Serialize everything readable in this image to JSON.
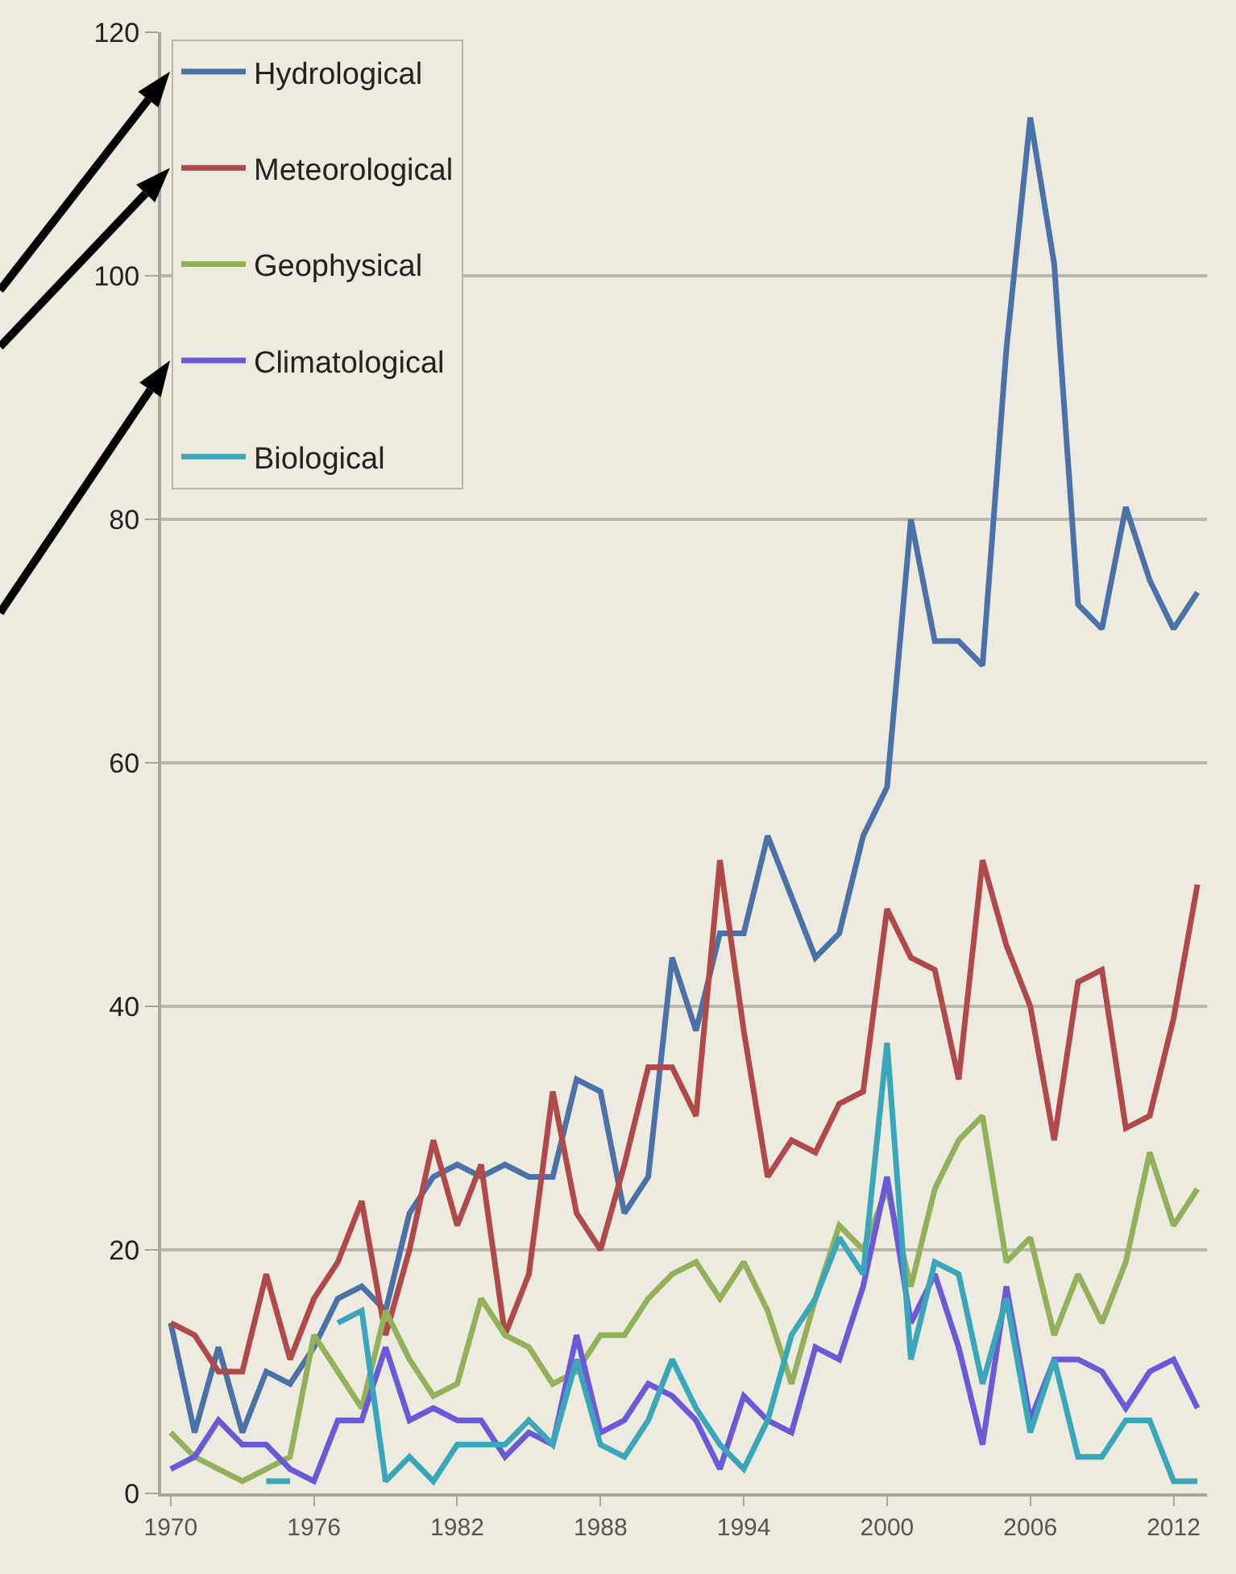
{
  "chart_data": {
    "type": "line",
    "x": [
      1970,
      1971,
      1972,
      1973,
      1974,
      1975,
      1976,
      1977,
      1978,
      1979,
      1980,
      1981,
      1982,
      1983,
      1984,
      1985,
      1986,
      1987,
      1988,
      1989,
      1990,
      1991,
      1992,
      1993,
      1994,
      1995,
      1996,
      1997,
      1998,
      1999,
      2000,
      2001,
      2002,
      2003,
      2004,
      2005,
      2006,
      2007,
      2008,
      2009,
      2010,
      2011,
      2012,
      2013
    ],
    "series": [
      {
        "name": "Hydrological",
        "color": "#4a72a8",
        "values": [
          14,
          5,
          12,
          5,
          10,
          9,
          12,
          16,
          17,
          15,
          23,
          26,
          27,
          26,
          27,
          26,
          26,
          34,
          33,
          23,
          26,
          44,
          38,
          46,
          46,
          54,
          49,
          44,
          46,
          54,
          58,
          80,
          70,
          70,
          68,
          94,
          113,
          101,
          73,
          71,
          81,
          75,
          71,
          74
        ]
      },
      {
        "name": "Meteorological",
        "color": "#b04a4a",
        "values": [
          14,
          13,
          10,
          10,
          18,
          11,
          16,
          19,
          24,
          13,
          20,
          29,
          22,
          27,
          13,
          18,
          33,
          23,
          20,
          27,
          35,
          35,
          31,
          52,
          38,
          26,
          29,
          28,
          32,
          33,
          48,
          44,
          43,
          34,
          52,
          45,
          40,
          29,
          42,
          43,
          30,
          31,
          39,
          50
        ]
      },
      {
        "name": "Geophysical",
        "color": "#93b15a",
        "values": [
          5,
          3,
          2,
          1,
          2,
          3,
          13,
          10,
          7,
          15,
          11,
          8,
          9,
          16,
          13,
          12,
          9,
          10,
          13,
          13,
          16,
          18,
          19,
          16,
          19,
          15,
          9,
          16,
          22,
          20,
          25,
          17,
          25,
          29,
          31,
          19,
          21,
          13,
          18,
          14,
          19,
          28,
          22,
          25
        ]
      },
      {
        "name": "Climatological",
        "color": "#6a5ad8",
        "values": [
          2,
          3,
          6,
          4,
          4,
          2,
          1,
          6,
          6,
          12,
          6,
          7,
          6,
          6,
          3,
          5,
          4,
          13,
          5,
          6,
          9,
          8,
          6,
          2,
          8,
          6,
          5,
          12,
          11,
          17,
          26,
          14,
          18,
          12,
          4,
          17,
          6,
          11,
          11,
          10,
          7,
          10,
          11,
          7
        ]
      },
      {
        "name": "Biological",
        "color": "#3aa6b9",
        "values": [
          null,
          null,
          null,
          null,
          1,
          1,
          null,
          14,
          15,
          1,
          3,
          1,
          4,
          4,
          4,
          6,
          4,
          11,
          4,
          3,
          6,
          11,
          7,
          4,
          2,
          6,
          13,
          16,
          21,
          18,
          37,
          11,
          19,
          18,
          9,
          16,
          5,
          11,
          3,
          3,
          6,
          6,
          1,
          1
        ]
      }
    ],
    "xlim": [
      1969.6,
      2013.4
    ],
    "xticks": [
      1970,
      1976,
      1982,
      1988,
      1994,
      2000,
      2006,
      2012
    ],
    "ylim": [
      0,
      120
    ],
    "yticks": [
      0,
      20,
      40,
      60,
      80,
      100,
      120
    ],
    "grid": "y",
    "legend": "top left",
    "line_style": "solid",
    "marker": "none"
  }
}
